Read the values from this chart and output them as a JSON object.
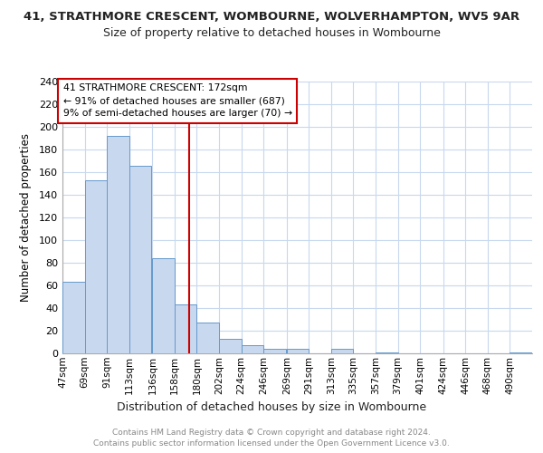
{
  "title": "41, STRATHMORE CRESCENT, WOMBOURNE, WOLVERHAMPTON, WV5 9AR",
  "subtitle": "Size of property relative to detached houses in Wombourne",
  "xlabel": "Distribution of detached houses by size in Wombourne",
  "ylabel": "Number of detached properties",
  "footer_lines": [
    "Contains HM Land Registry data © Crown copyright and database right 2024.",
    "Contains public sector information licensed under the Open Government Licence v3.0."
  ],
  "bin_labels": [
    "47sqm",
    "69sqm",
    "91sqm",
    "113sqm",
    "136sqm",
    "158sqm",
    "180sqm",
    "202sqm",
    "224sqm",
    "246sqm",
    "269sqm",
    "291sqm",
    "313sqm",
    "335sqm",
    "357sqm",
    "379sqm",
    "401sqm",
    "424sqm",
    "446sqm",
    "468sqm",
    "490sqm"
  ],
  "bin_edges": [
    47,
    69,
    91,
    113,
    136,
    158,
    180,
    202,
    224,
    246,
    269,
    291,
    313,
    335,
    357,
    379,
    401,
    424,
    446,
    468,
    490
  ],
  "counts": [
    63,
    153,
    192,
    166,
    84,
    43,
    27,
    13,
    7,
    4,
    4,
    0,
    4,
    0,
    1,
    0,
    0,
    0,
    0,
    0,
    1
  ],
  "bar_color": "#c8d8ee",
  "bar_edge_color": "#6699cc",
  "property_size": 172,
  "red_line_color": "#cc0000",
  "annotation_text_line1": "41 STRATHMORE CRESCENT: 172sqm",
  "annotation_text_line2": "← 91% of detached houses are smaller (687)",
  "annotation_text_line3": "9% of semi-detached houses are larger (70) →",
  "annotation_box_color": "#cc0000",
  "annotation_fill_color": "#ffffff",
  "ylim": [
    0,
    240
  ],
  "yticks": [
    0,
    20,
    40,
    60,
    80,
    100,
    120,
    140,
    160,
    180,
    200,
    220,
    240
  ],
  "background_color": "#ffffff",
  "grid_color": "#c8d8ee",
  "title_fontsize": 9.5,
  "subtitle_fontsize": 9,
  "footer_color": "#888888"
}
